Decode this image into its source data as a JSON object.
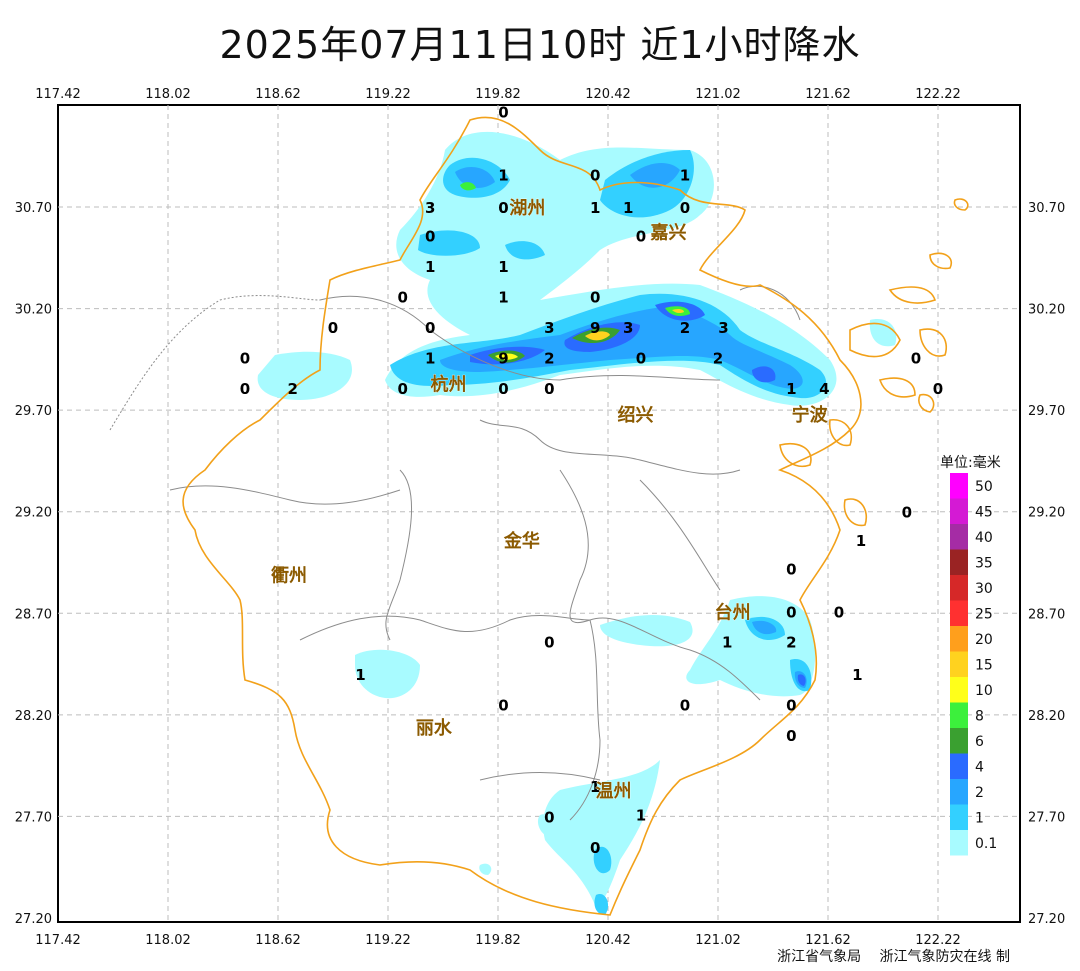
{
  "title": "2025年07月11日10时  近1小时降水",
  "axes": {
    "x_ticks": [
      "117.42",
      "118.02",
      "118.62",
      "119.22",
      "119.82",
      "120.42",
      "121.02",
      "121.62",
      "122.22"
    ],
    "y_ticks": [
      "30.70",
      "30.20",
      "29.70",
      "29.20",
      "28.70",
      "28.20",
      "27.70",
      "27.20"
    ]
  },
  "cities": [
    {
      "name": "湖州",
      "lon": 119.98,
      "lat": 30.7
    },
    {
      "name": "嘉兴",
      "lon": 120.75,
      "lat": 30.58
    },
    {
      "name": "杭州",
      "lon": 119.55,
      "lat": 29.83
    },
    {
      "name": "绍兴",
      "lon": 120.57,
      "lat": 29.68
    },
    {
      "name": "宁波",
      "lon": 121.52,
      "lat": 29.68
    },
    {
      "name": "金华",
      "lon": 119.95,
      "lat": 29.06
    },
    {
      "name": "衢州",
      "lon": 118.68,
      "lat": 28.89
    },
    {
      "name": "台州",
      "lon": 121.1,
      "lat": 28.71
    },
    {
      "name": "丽水",
      "lon": 119.47,
      "lat": 28.14
    },
    {
      "name": "温州",
      "lon": 120.45,
      "lat": 27.83
    }
  ],
  "stations": [
    {
      "v": "0",
      "lon": 119.85,
      "lat": 31.17
    },
    {
      "v": "1",
      "lon": 119.85,
      "lat": 30.86
    },
    {
      "v": "0",
      "lon": 120.35,
      "lat": 30.86
    },
    {
      "v": "1",
      "lon": 120.84,
      "lat": 30.86
    },
    {
      "v": "3",
      "lon": 119.45,
      "lat": 30.7
    },
    {
      "v": "0",
      "lon": 119.85,
      "lat": 30.7
    },
    {
      "v": "1",
      "lon": 120.35,
      "lat": 30.7
    },
    {
      "v": "1",
      "lon": 120.53,
      "lat": 30.7
    },
    {
      "v": "0",
      "lon": 120.84,
      "lat": 30.7
    },
    {
      "v": "0",
      "lon": 119.45,
      "lat": 30.56
    },
    {
      "v": "0",
      "lon": 120.6,
      "lat": 30.56
    },
    {
      "v": "1",
      "lon": 119.45,
      "lat": 30.41
    },
    {
      "v": "1",
      "lon": 119.85,
      "lat": 30.41
    },
    {
      "v": "0",
      "lon": 119.3,
      "lat": 30.26
    },
    {
      "v": "1",
      "lon": 119.85,
      "lat": 30.26
    },
    {
      "v": "0",
      "lon": 120.35,
      "lat": 30.26
    },
    {
      "v": "0",
      "lon": 118.92,
      "lat": 30.11
    },
    {
      "v": "0",
      "lon": 119.45,
      "lat": 30.11
    },
    {
      "v": "3",
      "lon": 120.1,
      "lat": 30.11
    },
    {
      "v": "9",
      "lon": 120.35,
      "lat": 30.11
    },
    {
      "v": "3",
      "lon": 120.53,
      "lat": 30.11
    },
    {
      "v": "2",
      "lon": 120.84,
      "lat": 30.11
    },
    {
      "v": "3",
      "lon": 121.05,
      "lat": 30.11
    },
    {
      "v": "0",
      "lon": 118.44,
      "lat": 29.96
    },
    {
      "v": "1",
      "lon": 119.45,
      "lat": 29.96
    },
    {
      "v": "9",
      "lon": 119.85,
      "lat": 29.96
    },
    {
      "v": "2",
      "lon": 120.1,
      "lat": 29.96
    },
    {
      "v": "0",
      "lon": 120.6,
      "lat": 29.96
    },
    {
      "v": "2",
      "lon": 121.02,
      "lat": 29.96
    },
    {
      "v": "0",
      "lon": 122.1,
      "lat": 29.96
    },
    {
      "v": "0",
      "lon": 118.44,
      "lat": 29.81
    },
    {
      "v": "2",
      "lon": 118.7,
      "lat": 29.81
    },
    {
      "v": "0",
      "lon": 119.3,
      "lat": 29.81
    },
    {
      "v": "0",
      "lon": 119.85,
      "lat": 29.81
    },
    {
      "v": "0",
      "lon": 120.1,
      "lat": 29.81
    },
    {
      "v": "1",
      "lon": 121.42,
      "lat": 29.81
    },
    {
      "v": "4",
      "lon": 121.6,
      "lat": 29.81
    },
    {
      "v": "0",
      "lon": 122.22,
      "lat": 29.81
    },
    {
      "v": "0",
      "lon": 122.05,
      "lat": 29.2
    },
    {
      "v": "1",
      "lon": 121.8,
      "lat": 29.06
    },
    {
      "v": "0",
      "lon": 121.42,
      "lat": 28.92
    },
    {
      "v": "0",
      "lon": 121.42,
      "lat": 28.71
    },
    {
      "v": "0",
      "lon": 121.68,
      "lat": 28.71
    },
    {
      "v": "0",
      "lon": 120.1,
      "lat": 28.56
    },
    {
      "v": "1",
      "lon": 121.07,
      "lat": 28.56
    },
    {
      "v": "2",
      "lon": 121.42,
      "lat": 28.56
    },
    {
      "v": "1",
      "lon": 121.78,
      "lat": 28.4
    },
    {
      "v": "1",
      "lon": 119.07,
      "lat": 28.4
    },
    {
      "v": "0",
      "lon": 119.85,
      "lat": 28.25
    },
    {
      "v": "0",
      "lon": 120.84,
      "lat": 28.25
    },
    {
      "v": "0",
      "lon": 121.42,
      "lat": 28.25
    },
    {
      "v": "0",
      "lon": 121.42,
      "lat": 28.1
    },
    {
      "v": "1",
      "lon": 120.35,
      "lat": 27.85
    },
    {
      "v": "1",
      "lon": 120.6,
      "lat": 27.71
    },
    {
      "v": "0",
      "lon": 120.1,
      "lat": 27.7
    },
    {
      "v": "0",
      "lon": 120.35,
      "lat": 27.55
    }
  ],
  "legend": {
    "title": "单位:毫米",
    "items": [
      {
        "label": "50",
        "color": "#ff00ff"
      },
      {
        "label": "45",
        "color": "#d41ad4"
      },
      {
        "label": "40",
        "color": "#a52ca5"
      },
      {
        "label": "35",
        "color": "#9a2323"
      },
      {
        "label": "30",
        "color": "#d62828"
      },
      {
        "label": "25",
        "color": "#ff3030"
      },
      {
        "label": "20",
        "color": "#ff9f1c"
      },
      {
        "label": "15",
        "color": "#ffd21f"
      },
      {
        "label": "10",
        "color": "#ffff1a"
      },
      {
        "label": "8",
        "color": "#3cf03c"
      },
      {
        "label": "6",
        "color": "#3aa030"
      },
      {
        "label": "4",
        "color": "#2a6bff"
      },
      {
        "label": "2",
        "color": "#27a6ff"
      },
      {
        "label": "1",
        "color": "#33d0ff"
      },
      {
        "label": "0.1",
        "color": "#a8fbff"
      }
    ]
  },
  "footer": {
    "org1": "浙江省气象局",
    "org2": "浙江气象防灾在线 制"
  },
  "colors": {
    "coast": "#f2a11a",
    "boundary": "#8c8c8c",
    "grid": "#bdbdbd"
  }
}
